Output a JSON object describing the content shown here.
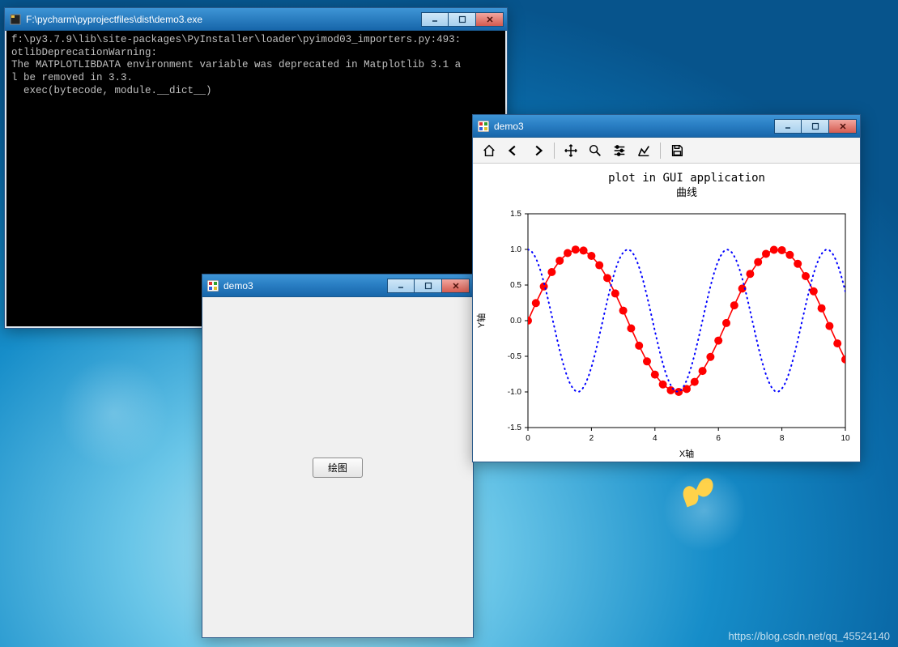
{
  "desktop": {
    "bg_inner": "#bde8f4",
    "bg_outer": "#07548c",
    "watermark": "https://blog.csdn.net/qq_45524140"
  },
  "console_window": {
    "title": "F:\\pycharm\\pyprojectfiles\\dist\\demo3.exe",
    "icon_color": "#f0c040",
    "text_color": "#c0c0c0",
    "bg_color": "#000000",
    "lines": [
      "f:\\py3.7.9\\lib\\site-packages\\PyInstaller\\loader\\pyimod03_importers.py:493:",
      "otlibDeprecationWarning:",
      "The MATPLOTLIBDATA environment variable was deprecated in Matplotlib 3.1 a",
      "l be removed in 3.3.",
      "  exec(bytecode, module.__dict__)"
    ],
    "controls": {
      "minimize": "–",
      "maximize": "□",
      "close": "×"
    }
  },
  "button_window": {
    "title": "demo3",
    "client_bg": "#f0f0f0",
    "button_label": "绘图",
    "controls": {
      "minimize": "–",
      "maximize": "□",
      "close": "×"
    }
  },
  "plot_window": {
    "title": "demo3",
    "controls": {
      "minimize": "–",
      "maximize": "□",
      "close": "×"
    },
    "toolbar_icons": [
      "home",
      "back",
      "forward",
      "pan",
      "zoom",
      "configure",
      "edit-axes",
      "save"
    ],
    "chart": {
      "type": "line",
      "suptitle": "plot in GUI application",
      "suptitle_fontsize": 14,
      "title": "曲线",
      "title_fontsize": 13,
      "xlabel": "X轴",
      "ylabel": "Y轴",
      "label_fontsize": 11,
      "xlim": [
        0,
        10
      ],
      "ylim": [
        -1.5,
        1.5
      ],
      "xtick_step": 2,
      "ytick_step": 0.5,
      "xtick_labels": [
        "0",
        "2",
        "4",
        "6",
        "8",
        "10"
      ],
      "ytick_labels": [
        "-1.5",
        "-1.0",
        "-0.5",
        "0.0",
        "0.5",
        "1.0",
        "1.5"
      ],
      "background_color": "#ffffff",
      "axis_color": "#000000",
      "tick_fontsize": 10,
      "series": [
        {
          "name": "sin",
          "fn": "sin(x)",
          "samples": 41,
          "color": "#ff0000",
          "linewidth": 1.6,
          "marker": "circle",
          "marker_size": 5,
          "marker_fill": "#ff0000",
          "linestyle": "solid"
        },
        {
          "name": "cos",
          "fn": "cos(2x)",
          "samples": 100,
          "color": "#0000ff",
          "linewidth": 2.0,
          "marker": "none",
          "linestyle": "dotted",
          "dash": "1 5"
        }
      ]
    }
  }
}
